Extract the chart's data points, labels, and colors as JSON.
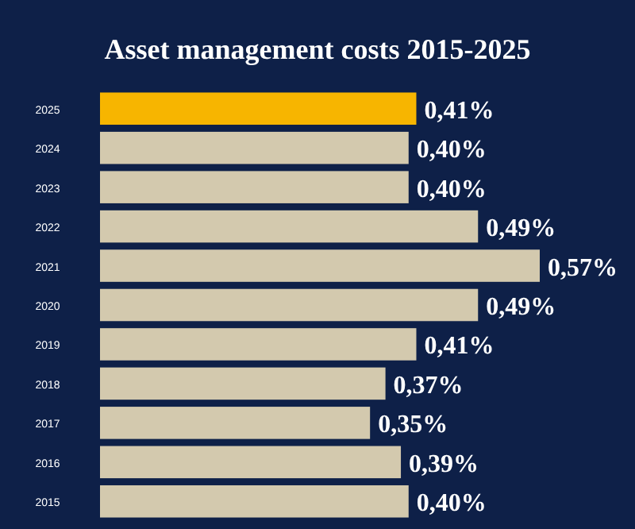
{
  "chart_data": {
    "type": "bar",
    "orientation": "horizontal",
    "title": "Asset management costs 2015-2025",
    "categories": [
      "2025",
      "2024",
      "2023",
      "2022",
      "2021",
      "2020",
      "2019",
      "2018",
      "2017",
      "2016",
      "2015"
    ],
    "values": [
      0.41,
      0.4,
      0.4,
      0.49,
      0.57,
      0.49,
      0.41,
      0.37,
      0.35,
      0.39,
      0.4
    ],
    "value_labels": [
      "0,41%",
      "0,40%",
      "0,40%",
      "0,49%",
      "0,57%",
      "0,49%",
      "0,41%",
      "0,37%",
      "0,35%",
      "0,39%",
      "0,40%"
    ],
    "colors": [
      "#f7b500",
      "#d3c9ae",
      "#d3c9ae",
      "#d3c9ae",
      "#d3c9ae",
      "#d3c9ae",
      "#d3c9ae",
      "#d3c9ae",
      "#d3c9ae",
      "#d3c9ae",
      "#d3c9ae"
    ]
  }
}
